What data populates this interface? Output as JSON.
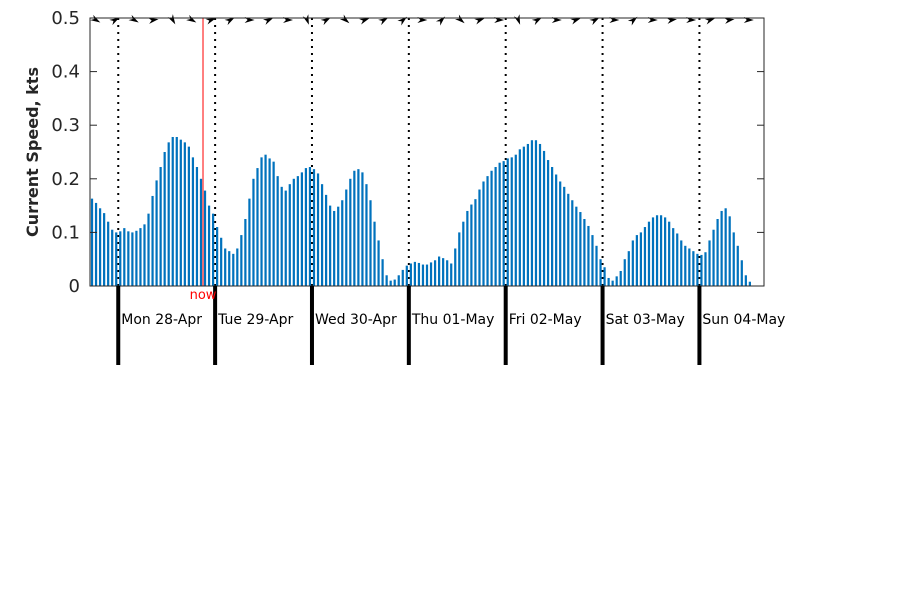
{
  "chart_data": {
    "type": "bar",
    "title": "",
    "ylabel": "Current Speed, kts",
    "ylim": [
      0,
      0.5
    ],
    "yticks": [
      0,
      0.1,
      0.2,
      0.3,
      0.4,
      0.5
    ],
    "ytick_labels": [
      "0",
      "0.1",
      "0.2",
      "0.3",
      "0.4",
      "0.5"
    ],
    "bar_color": "#0072bd",
    "now_color": "#ff0000",
    "x_unit": "hours",
    "x_range": [
      -7,
      160
    ],
    "now_x": 21,
    "now_label": "now",
    "days": [
      {
        "x": 0,
        "label": "Mon 28-Apr"
      },
      {
        "x": 24,
        "label": "Tue 29-Apr"
      },
      {
        "x": 48,
        "label": "Wed 30-Apr"
      },
      {
        "x": 72,
        "label": "Thu 01-May"
      },
      {
        "x": 96,
        "label": "Fri 02-May"
      },
      {
        "x": 120,
        "label": "Sat 03-May"
      },
      {
        "x": 144,
        "label": "Sun 04-May"
      }
    ],
    "values": [
      0.163,
      0.155,
      0.145,
      0.136,
      0.12,
      0.105,
      0.1,
      0.102,
      0.108,
      0.102,
      0.1,
      0.103,
      0.108,
      0.115,
      0.135,
      0.168,
      0.197,
      0.222,
      0.25,
      0.268,
      0.278,
      0.278,
      0.273,
      0.268,
      0.26,
      0.24,
      0.222,
      0.2,
      0.178,
      0.15,
      0.135,
      0.11,
      0.09,
      0.07,
      0.065,
      0.06,
      0.07,
      0.095,
      0.125,
      0.163,
      0.2,
      0.22,
      0.24,
      0.245,
      0.238,
      0.232,
      0.205,
      0.185,
      0.178,
      0.19,
      0.2,
      0.205,
      0.212,
      0.22,
      0.222,
      0.218,
      0.21,
      0.19,
      0.17,
      0.15,
      0.14,
      0.148,
      0.16,
      0.18,
      0.2,
      0.215,
      0.218,
      0.212,
      0.19,
      0.16,
      0.12,
      0.085,
      0.05,
      0.02,
      0.01,
      0.012,
      0.02,
      0.03,
      0.038,
      0.042,
      0.045,
      0.043,
      0.04,
      0.04,
      0.044,
      0.048,
      0.055,
      0.052,
      0.048,
      0.042,
      0.07,
      0.1,
      0.12,
      0.14,
      0.152,
      0.162,
      0.18,
      0.195,
      0.205,
      0.215,
      0.222,
      0.23,
      0.233,
      0.238,
      0.24,
      0.245,
      0.255,
      0.26,
      0.265,
      0.272,
      0.272,
      0.265,
      0.252,
      0.235,
      0.222,
      0.208,
      0.195,
      0.185,
      0.172,
      0.16,
      0.148,
      0.138,
      0.125,
      0.112,
      0.095,
      0.075,
      0.05,
      0.035,
      0.015,
      0.01,
      0.018,
      0.028,
      0.05,
      0.065,
      0.085,
      0.095,
      0.1,
      0.11,
      0.12,
      0.128,
      0.132,
      0.132,
      0.128,
      0.12,
      0.108,
      0.098,
      0.085,
      0.075,
      0.07,
      0.065,
      0.06,
      0.058,
      0.063,
      0.085,
      0.105,
      0.125,
      0.14,
      0.145,
      0.13,
      0.1,
      0.075,
      0.048,
      0.02,
      0.008
    ]
  }
}
